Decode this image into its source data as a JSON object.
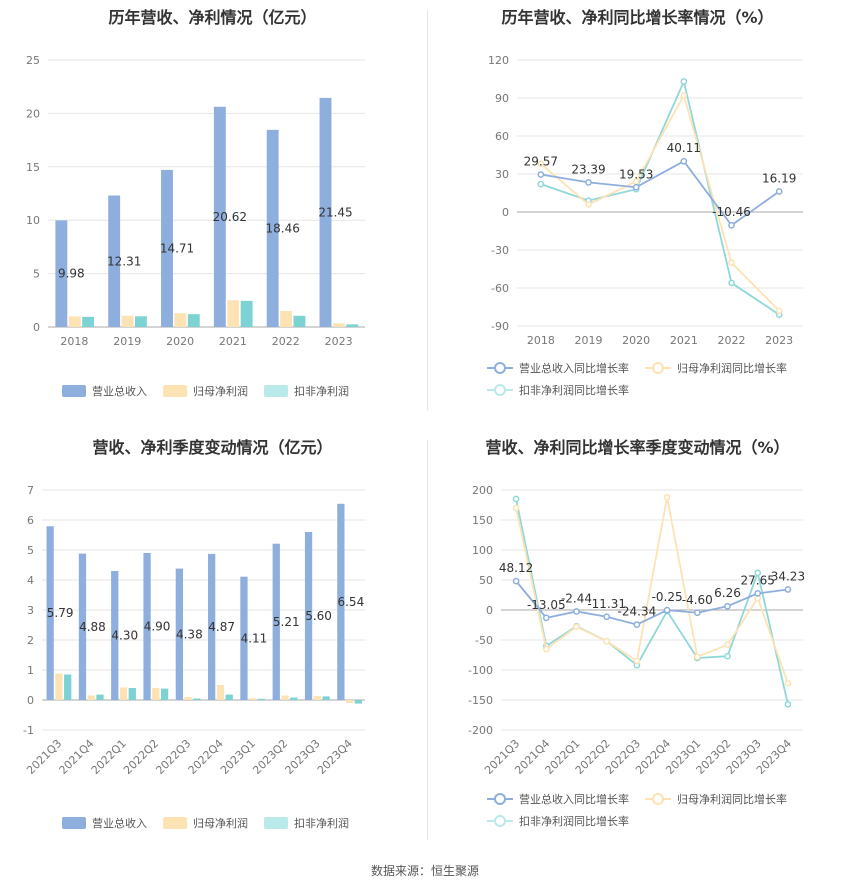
{
  "colors": {
    "revenue": "#8eaedd",
    "parent_profit": "#fde2b3",
    "deducted_profit": "#7dd3d3",
    "grid": "#e6e6e6",
    "axis_text": "#777777"
  },
  "legends": {
    "revenue": "营业总收入",
    "parent_profit": "归母净利润",
    "deducted_profit": "扣非净利润",
    "revenue_growth": "营业总收入同比增长率",
    "parent_growth": "归母净利润同比增长率",
    "deducted_growth": "扣非净利润同比增长率"
  },
  "source": "数据来源：恒生聚源",
  "chart_data": [
    {
      "type": "bar",
      "title": "历年营收、净利情况（亿元）",
      "categories": [
        "2018",
        "2019",
        "2020",
        "2021",
        "2022",
        "2023"
      ],
      "ylim": [
        0,
        25
      ],
      "yticks": [
        0,
        5,
        10,
        15,
        20,
        25
      ],
      "series": [
        {
          "name": "营业总收入",
          "values": [
            9.98,
            12.31,
            14.71,
            20.62,
            18.46,
            21.45
          ],
          "labels": [
            "9.98",
            "12.31",
            "14.71",
            "20.62",
            "18.46",
            "21.45"
          ]
        },
        {
          "name": "归母净利润",
          "values": [
            1.0,
            1.05,
            1.3,
            2.5,
            1.5,
            0.35
          ]
        },
        {
          "name": "扣非净利润",
          "values": [
            0.95,
            1.0,
            1.2,
            2.45,
            1.05,
            0.25
          ]
        }
      ],
      "legend_position": "bottom"
    },
    {
      "type": "line",
      "title": "历年营收、净利同比增长率情况（%）",
      "categories": [
        "2018",
        "2019",
        "2020",
        "2021",
        "2022",
        "2023"
      ],
      "ylim": [
        -90,
        120
      ],
      "yticks": [
        -90,
        -60,
        -30,
        0,
        30,
        60,
        90,
        120
      ],
      "series": [
        {
          "name": "营业总收入同比增长率",
          "values": [
            29.57,
            23.39,
            19.53,
            40.11,
            -10.46,
            16.19
          ],
          "labels": [
            "29.57",
            "23.39",
            "19.53",
            "40.11",
            "-10.46",
            "16.19"
          ]
        },
        {
          "name": "归母净利润同比增长率",
          "values": [
            38,
            6,
            24,
            92,
            -40,
            -78
          ]
        },
        {
          "name": "扣非净利润同比增长率",
          "values": [
            22,
            9,
            18,
            103,
            -56,
            -81
          ]
        }
      ],
      "legend_position": "bottom"
    },
    {
      "type": "bar",
      "title": "营收、净利季度变动情况（亿元）",
      "categories": [
        "2021Q3",
        "2021Q4",
        "2022Q1",
        "2022Q2",
        "2022Q3",
        "2022Q4",
        "2023Q1",
        "2023Q2",
        "2023Q3",
        "2023Q4"
      ],
      "ylim": [
        -1,
        7
      ],
      "yticks": [
        -1,
        0,
        1,
        2,
        3,
        4,
        5,
        6,
        7
      ],
      "series": [
        {
          "name": "营业总收入",
          "values": [
            5.79,
            4.88,
            4.3,
            4.9,
            4.38,
            4.87,
            4.11,
            5.21,
            5.6,
            6.54
          ],
          "labels": [
            "5.79",
            "4.88",
            "4.30",
            "4.90",
            "4.38",
            "4.87",
            "4.11",
            "5.21",
            "5.60",
            "6.54"
          ]
        },
        {
          "name": "归母净利润",
          "values": [
            0.88,
            0.15,
            0.42,
            0.4,
            0.1,
            0.5,
            0.06,
            0.15,
            0.13,
            -0.1
          ]
        },
        {
          "name": "扣非净利润",
          "values": [
            0.85,
            0.18,
            0.4,
            0.38,
            0.05,
            0.18,
            0.04,
            0.08,
            0.12,
            -0.12
          ]
        }
      ],
      "legend_position": "bottom"
    },
    {
      "type": "line",
      "title": "营收、净利同比增长率季度变动情况（%）",
      "categories": [
        "2021Q3",
        "2021Q4",
        "2022Q1",
        "2022Q2",
        "2022Q3",
        "2022Q4",
        "2023Q1",
        "2023Q2",
        "2023Q3",
        "2023Q4"
      ],
      "ylim": [
        -200,
        200
      ],
      "yticks": [
        -200,
        -150,
        -100,
        -50,
        0,
        50,
        100,
        150,
        200
      ],
      "series": [
        {
          "name": "营业总收入同比增长率",
          "values": [
            48.12,
            -13.05,
            -2.44,
            -11.31,
            -24.34,
            -0.25,
            -4.6,
            6.26,
            27.65,
            34.23
          ],
          "labels": [
            "48.12",
            "-13.05",
            "-2.44",
            "-11.31",
            "-24.34",
            "-0.25",
            "-4.60",
            "6.26",
            "27.65",
            "34.23"
          ]
        },
        {
          "name": "归母净利润同比增长率",
          "values": [
            170,
            -65,
            -28,
            -52,
            -85,
            188,
            -78,
            -58,
            20,
            -122
          ]
        },
        {
          "name": "扣非净利润同比增长率",
          "values": [
            185,
            -60,
            -27,
            -52,
            -92,
            -2,
            -80,
            -77,
            62,
            -157
          ]
        }
      ],
      "legend_position": "bottom"
    }
  ]
}
